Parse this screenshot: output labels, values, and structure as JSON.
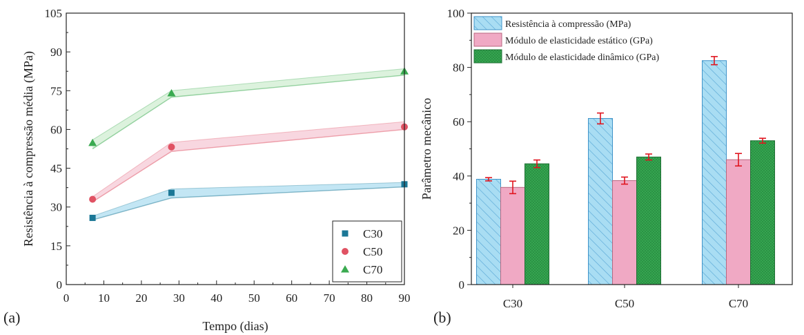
{
  "chart_data": [
    {
      "type": "scatter",
      "panel_label": "(a)",
      "xlabel": "Tempo (dias)",
      "ylabel": "Resistência à compressão média (MPa)",
      "xlim": [
        0,
        90
      ],
      "ylim": [
        0,
        105
      ],
      "xticks": [
        "0",
        "10",
        "20",
        "30",
        "40",
        "50",
        "60",
        "70",
        "80",
        "90"
      ],
      "yticks": [
        "0",
        "15",
        "30",
        "45",
        "60",
        "75",
        "90",
        "105"
      ],
      "legend_position": "bottom-right",
      "series": [
        {
          "name": "C30",
          "marker": "square",
          "color": "#1b7796",
          "band_color": "#a9dcef",
          "points": [
            [
              7,
              25.8
            ],
            [
              28,
              35.5
            ],
            [
              90,
              38.8
            ]
          ],
          "band_upper": [
            [
              7,
              26.5
            ],
            [
              28,
              37.0
            ],
            [
              90,
              39.5
            ]
          ],
          "band_lower": [
            [
              7,
              25.0
            ],
            [
              28,
              33.5
            ],
            [
              90,
              37.8
            ]
          ]
        },
        {
          "name": "C50",
          "marker": "circle",
          "color": "#e05263",
          "band_color": "#f5c6d3",
          "points": [
            [
              7,
              33.0
            ],
            [
              28,
              53.2
            ],
            [
              90,
              61.0
            ]
          ],
          "band_upper": [
            [
              7,
              34.0
            ],
            [
              28,
              55.0
            ],
            [
              90,
              63.0
            ]
          ],
          "band_lower": [
            [
              7,
              32.0
            ],
            [
              28,
              51.5
            ],
            [
              90,
              60.0
            ]
          ]
        },
        {
          "name": "C70",
          "marker": "triangle",
          "color": "#3aaa50",
          "band_color": "#cdeccf",
          "points": [
            [
              7,
              54.8
            ],
            [
              28,
              74.0
            ],
            [
              90,
              82.5
            ]
          ],
          "band_upper": [
            [
              7,
              56.0
            ],
            [
              28,
              75.0
            ],
            [
              90,
              83.5
            ]
          ],
          "band_lower": [
            [
              7,
              52.5
            ],
            [
              28,
              72.5
            ],
            [
              90,
              81.0
            ]
          ]
        }
      ]
    },
    {
      "type": "bar",
      "panel_label": "(b)",
      "ylabel": "Parâmetro mecânico",
      "categories": [
        "C30",
        "C50",
        "C70"
      ],
      "ylim": [
        0,
        100
      ],
      "yticks": [
        "0",
        "20",
        "40",
        "60",
        "80",
        "100"
      ],
      "legend_position": "top-left",
      "error_bar_color": "#e0141e",
      "series": [
        {
          "name": "Resistência à compressão (MPa)",
          "fill": "#a9ddf3",
          "edge": "#3e93c9",
          "pattern": "hatch",
          "values": [
            38.8,
            61.2,
            82.5
          ],
          "errors": [
            0.6,
            2.0,
            1.5
          ]
        },
        {
          "name": "Módulo de elasticidade estático (GPa)",
          "fill": "#f0a9c4",
          "edge": "#b8677f",
          "pattern": "solid",
          "values": [
            35.8,
            38.3,
            46.0
          ],
          "errors": [
            2.3,
            1.3,
            2.3
          ]
        },
        {
          "name": "Módulo de elasticidade dinâmico (GPa)",
          "fill": "#35a550",
          "edge": "#1f6e34",
          "pattern": "dots",
          "values": [
            44.5,
            47.0,
            53.0
          ],
          "errors": [
            1.4,
            1.1,
            0.9
          ]
        }
      ]
    }
  ]
}
